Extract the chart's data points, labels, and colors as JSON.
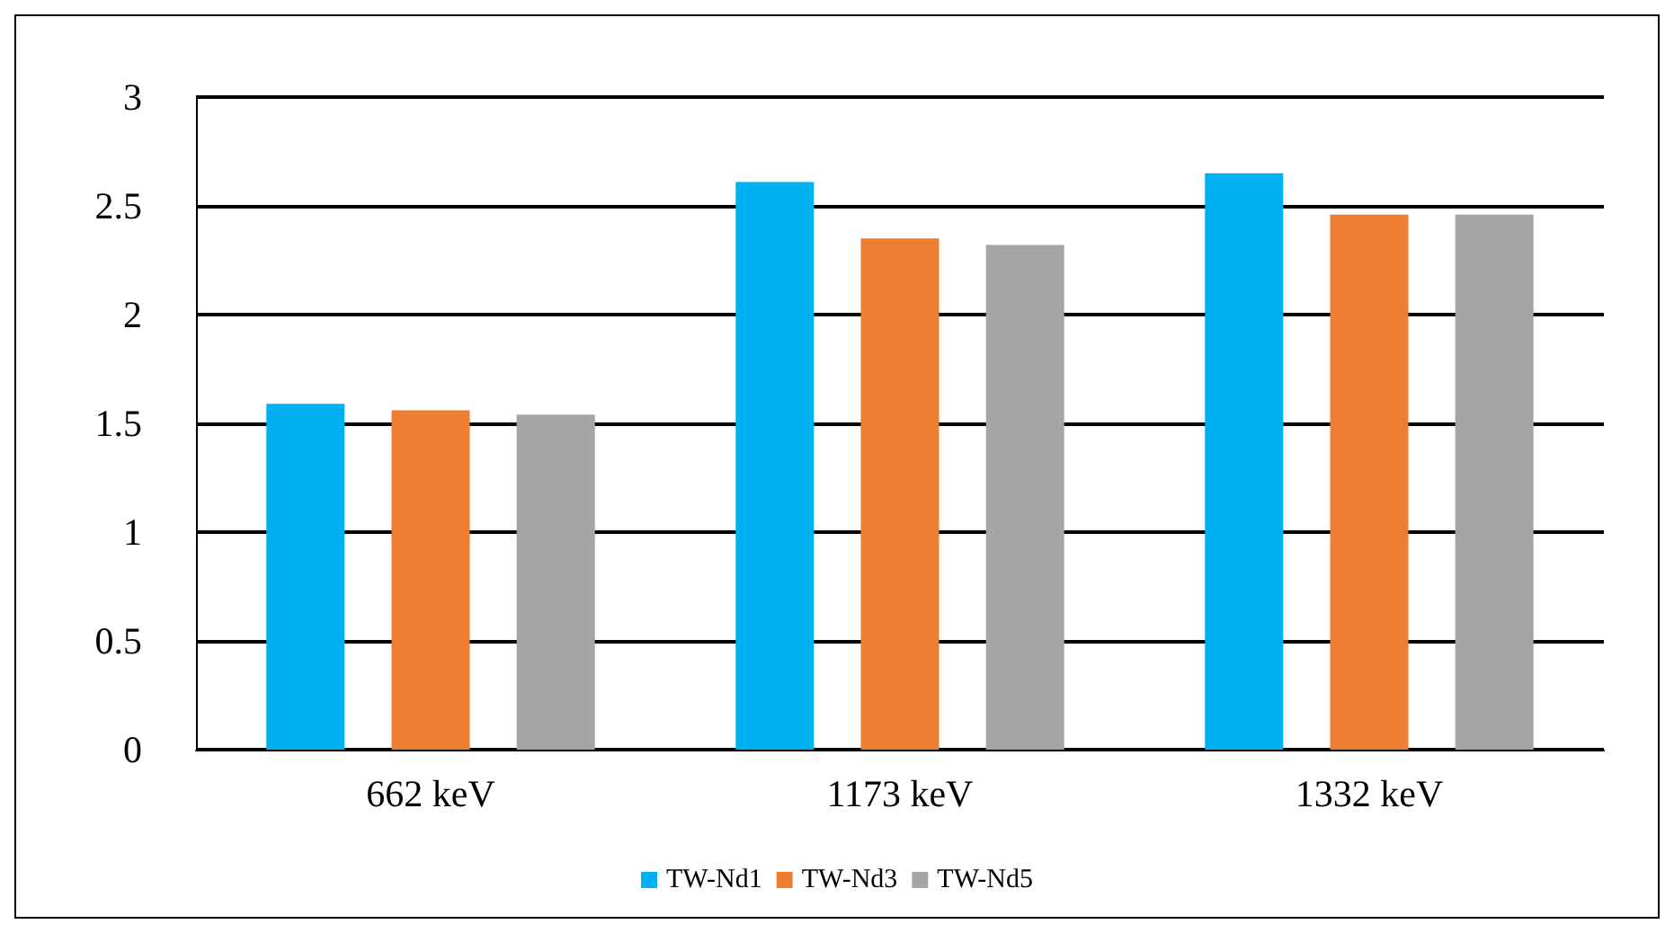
{
  "chart_data": {
    "type": "bar",
    "categories": [
      "662 keV",
      "1173 keV",
      "1332 keV"
    ],
    "series": [
      {
        "name": "TW-Nd1",
        "color": "#00b0f0",
        "values": [
          1.59,
          2.61,
          2.65
        ]
      },
      {
        "name": "TW-Nd3",
        "color": "#ed7d31",
        "values": [
          1.56,
          2.35,
          2.46
        ]
      },
      {
        "name": "TW-Nd5",
        "color": "#a5a5a5",
        "values": [
          1.54,
          2.32,
          2.46
        ]
      }
    ],
    "ylim": [
      0,
      3
    ],
    "yticks": [
      0,
      0.5,
      1,
      1.5,
      2,
      2.5,
      3
    ],
    "grid": "y",
    "legend": "bottom"
  }
}
